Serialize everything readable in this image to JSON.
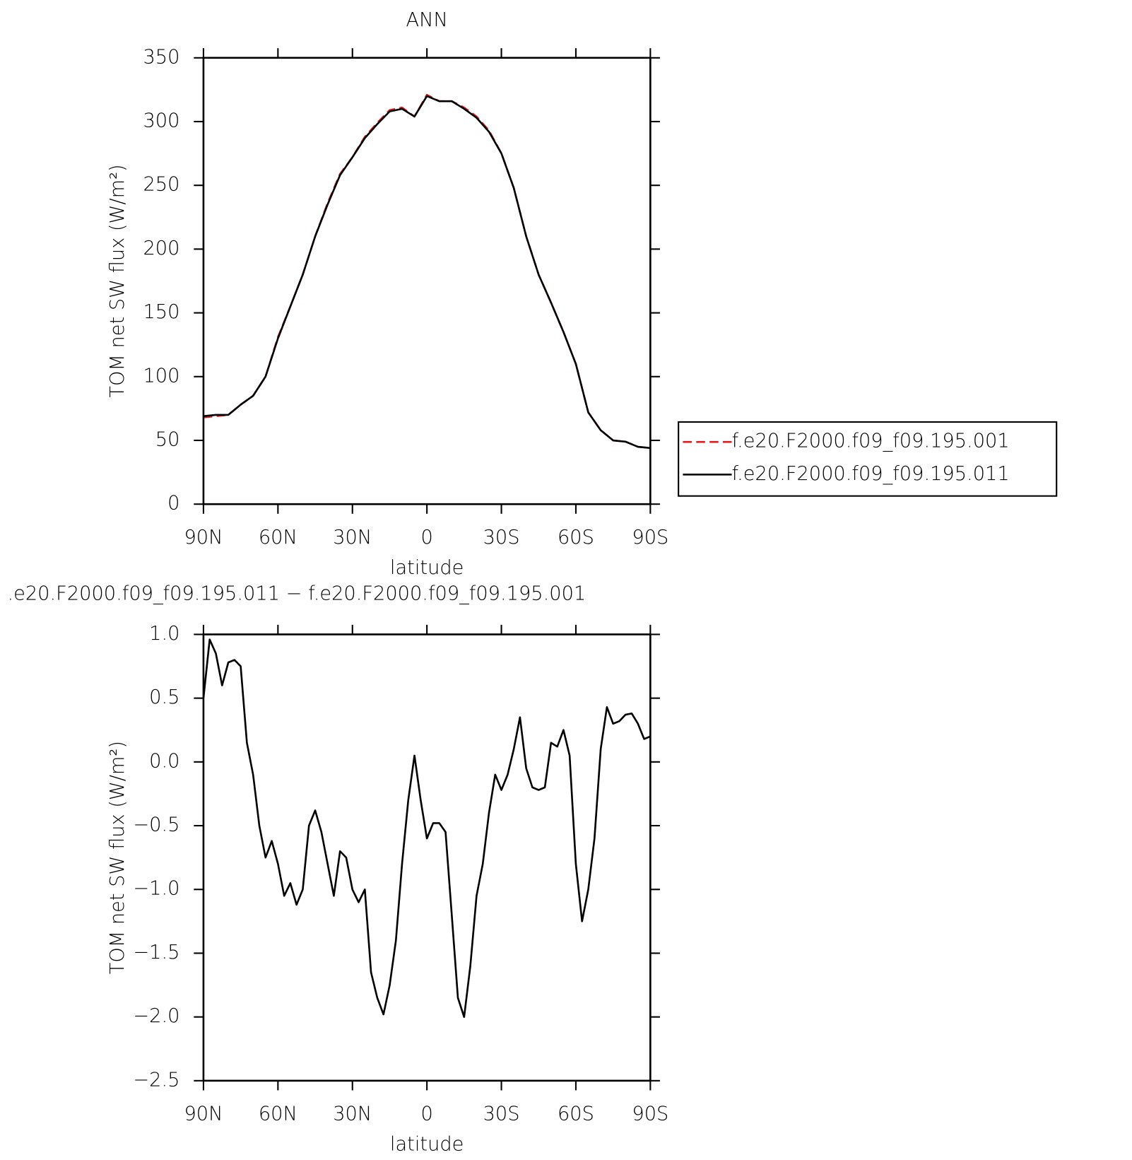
{
  "chart_data": [
    {
      "type": "line",
      "title": "ANN",
      "xlabel": "latitude",
      "ylabel": "TOM net SW flux (W/m²)",
      "x": [
        90,
        85,
        80,
        75,
        70,
        65,
        60,
        55,
        50,
        45,
        40,
        35,
        30,
        25,
        20,
        15,
        10,
        5,
        0,
        -5,
        -10,
        -15,
        -20,
        -25,
        -30,
        -35,
        -40,
        -45,
        -50,
        -55,
        -60,
        -65,
        -70,
        -75,
        -80,
        -85,
        -90
      ],
      "series": [
        {
          "name": "f.e20.F2000.f09_f09.195.001",
          "color": "#e31a1c",
          "linestyle": "dashed",
          "values": [
            68,
            69,
            70,
            78,
            85,
            100,
            131,
            155,
            180,
            210,
            236,
            259,
            272,
            288,
            299,
            309,
            311,
            304,
            321,
            316,
            316,
            311,
            304,
            293,
            275,
            248,
            210,
            180,
            158,
            135,
            110,
            72,
            58,
            50,
            49,
            45,
            44
          ]
        },
        {
          "name": "f.e20.F2000.f09_f09.195.011",
          "color": "#000000",
          "linestyle": "solid",
          "values": [
            69,
            70,
            70,
            78,
            85,
            100,
            130,
            155,
            180,
            210,
            235,
            258,
            272,
            287,
            298,
            308,
            310,
            304,
            320,
            316,
            316,
            310,
            303,
            292,
            275,
            248,
            210,
            180,
            158,
            135,
            110,
            72,
            58,
            50,
            49,
            45,
            44
          ]
        }
      ],
      "xlim": [
        90,
        -90
      ],
      "xticks": [
        {
          "value": 90,
          "label": "90N"
        },
        {
          "value": 60,
          "label": "60N"
        },
        {
          "value": 30,
          "label": "30N"
        },
        0,
        {
          "value": -30,
          "label": "30S"
        },
        {
          "value": -60,
          "label": "60S"
        },
        {
          "value": -90,
          "label": "90S"
        }
      ],
      "ylim": [
        0,
        350
      ],
      "yticks": [
        0,
        50,
        100,
        150,
        200,
        250,
        300,
        350
      ],
      "legend": "right"
    },
    {
      "type": "line",
      "title": ".e20.F2000.f09_f09.195.011 − f.e20.F2000.f09_f09.195.001",
      "xlabel": "latitude",
      "ylabel": "TOM net SW flux (W/m²)",
      "x": [
        90,
        87.5,
        85,
        82.5,
        80,
        77.5,
        75,
        72.5,
        70,
        67.5,
        65,
        62.5,
        60,
        57.5,
        55,
        52.5,
        50,
        47.5,
        45,
        42.5,
        40,
        37.5,
        35,
        32.5,
        30,
        27.5,
        25,
        22.5,
        20,
        17.5,
        15,
        12.5,
        10,
        7.5,
        5,
        2.5,
        0,
        -2.5,
        -5,
        -7.5,
        -10,
        -12.5,
        -15,
        -17.5,
        -20,
        -22.5,
        -25,
        -27.5,
        -30,
        -32.5,
        -35,
        -37.5,
        -40,
        -42.5,
        -45,
        -47.5,
        -50,
        -52.5,
        -55,
        -57.5,
        -60,
        -62.5,
        -65,
        -67.5,
        -70,
        -72.5,
        -75,
        -77.5,
        -80,
        -82.5,
        -85,
        -87.5,
        -90
      ],
      "series": [
        {
          "color": "#000000",
          "linestyle": "solid",
          "values": [
            0.5,
            0.96,
            0.85,
            0.6,
            0.78,
            0.8,
            0.75,
            0.15,
            -0.1,
            -0.5,
            -0.75,
            -0.62,
            -0.8,
            -1.05,
            -0.95,
            -1.12,
            -1.0,
            -0.5,
            -0.38,
            -0.55,
            -0.8,
            -1.05,
            -0.7,
            -0.75,
            -1.0,
            -1.1,
            -1.0,
            -1.65,
            -1.85,
            -1.98,
            -1.75,
            -1.4,
            -0.8,
            -0.3,
            0.05,
            -0.3,
            -0.6,
            -0.48,
            -0.48,
            -0.55,
            -1.2,
            -1.85,
            -2.0,
            -1.6,
            -1.05,
            -0.8,
            -0.4,
            -0.1,
            -0.22,
            -0.1,
            0.1,
            0.35,
            -0.05,
            -0.2,
            -0.22,
            -0.2,
            0.15,
            0.12,
            0.25,
            0.05,
            -0.8,
            -1.25,
            -1.0,
            -0.6,
            0.1,
            0.43,
            0.3,
            0.32,
            0.37,
            0.38,
            0.3,
            0.18,
            0.2
          ]
        }
      ],
      "xlim": [
        90,
        -90
      ],
      "xticks": [
        {
          "value": 90,
          "label": "90N"
        },
        {
          "value": 60,
          "label": "60N"
        },
        {
          "value": 30,
          "label": "30N"
        },
        0,
        {
          "value": -30,
          "label": "30S"
        },
        {
          "value": -60,
          "label": "60S"
        },
        {
          "value": -90,
          "label": "90S"
        }
      ],
      "ylim": [
        -2.5,
        1.0
      ],
      "yticks": [
        {
          "value": -2.5,
          "label": "−2.5"
        },
        {
          "value": -2,
          "label": "−2.0"
        },
        {
          "value": -1.5,
          "label": "−1.5"
        },
        {
          "value": -1,
          "label": "−1.0"
        },
        {
          "value": -0.5,
          "label": "−0.5"
        },
        {
          "value": 0,
          "label": "0.0"
        },
        0.5,
        {
          "value": 1,
          "label": "1.0"
        }
      ]
    }
  ]
}
